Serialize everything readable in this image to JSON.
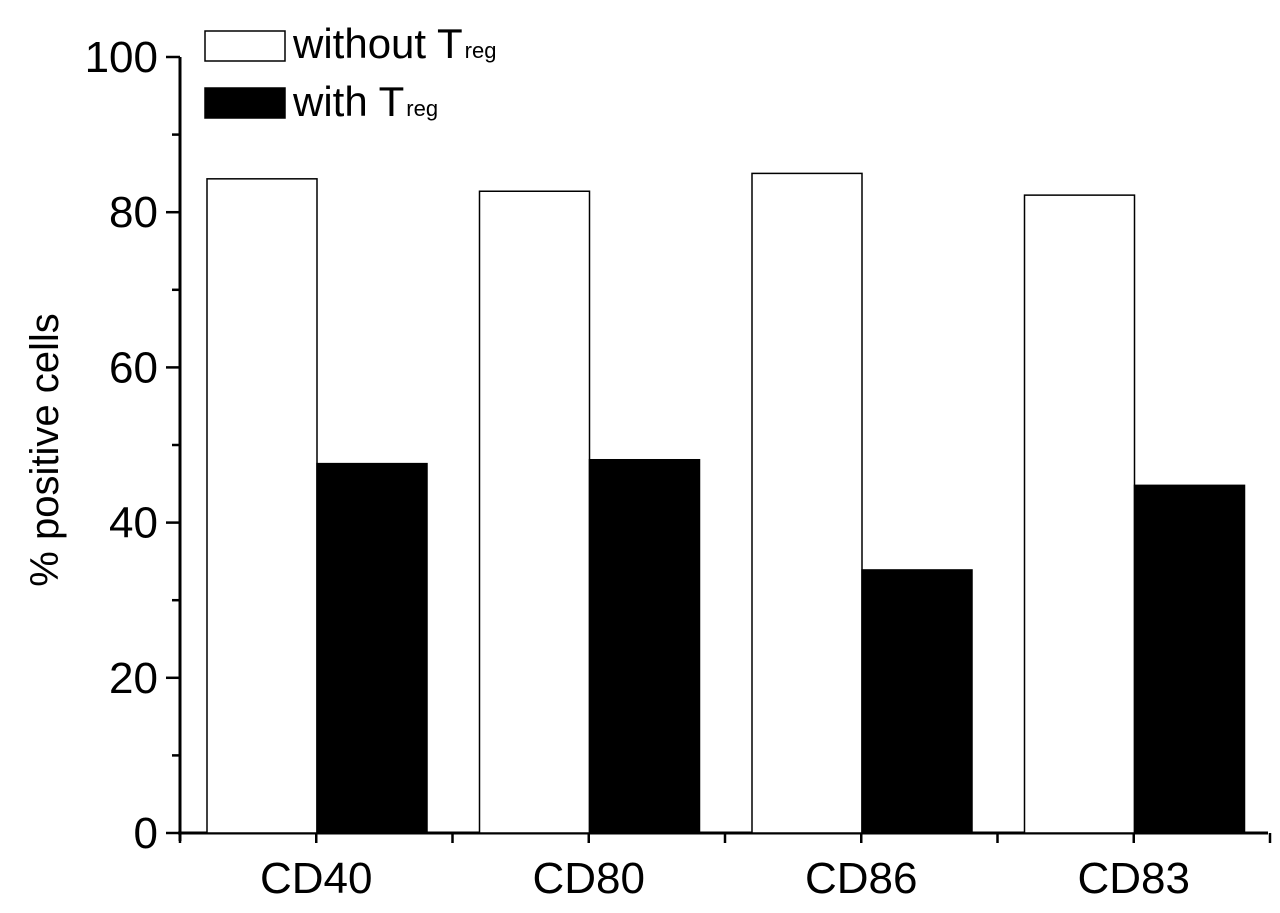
{
  "chart_data": {
    "type": "bar",
    "categories": [
      "CD40",
      "CD80",
      "CD86",
      "CD83"
    ],
    "series": [
      {
        "name": "without Treg",
        "name_main": "without T",
        "name_sub": "reg",
        "values": [
          84.3,
          82.7,
          85.0,
          82.2
        ],
        "color": "#ffffff"
      },
      {
        "name": "with Treg",
        "name_main": "with T",
        "name_sub": "reg",
        "values": [
          47.6,
          48.1,
          33.9,
          44.8
        ],
        "color": "#000000"
      }
    ],
    "title": "",
    "xlabel": "",
    "ylabel": "% positive cells",
    "ylim": [
      0,
      100
    ],
    "yticks": [
      "0",
      "20",
      "40",
      "60",
      "80",
      "100"
    ],
    "grid": false,
    "legend_position": "top-left"
  }
}
